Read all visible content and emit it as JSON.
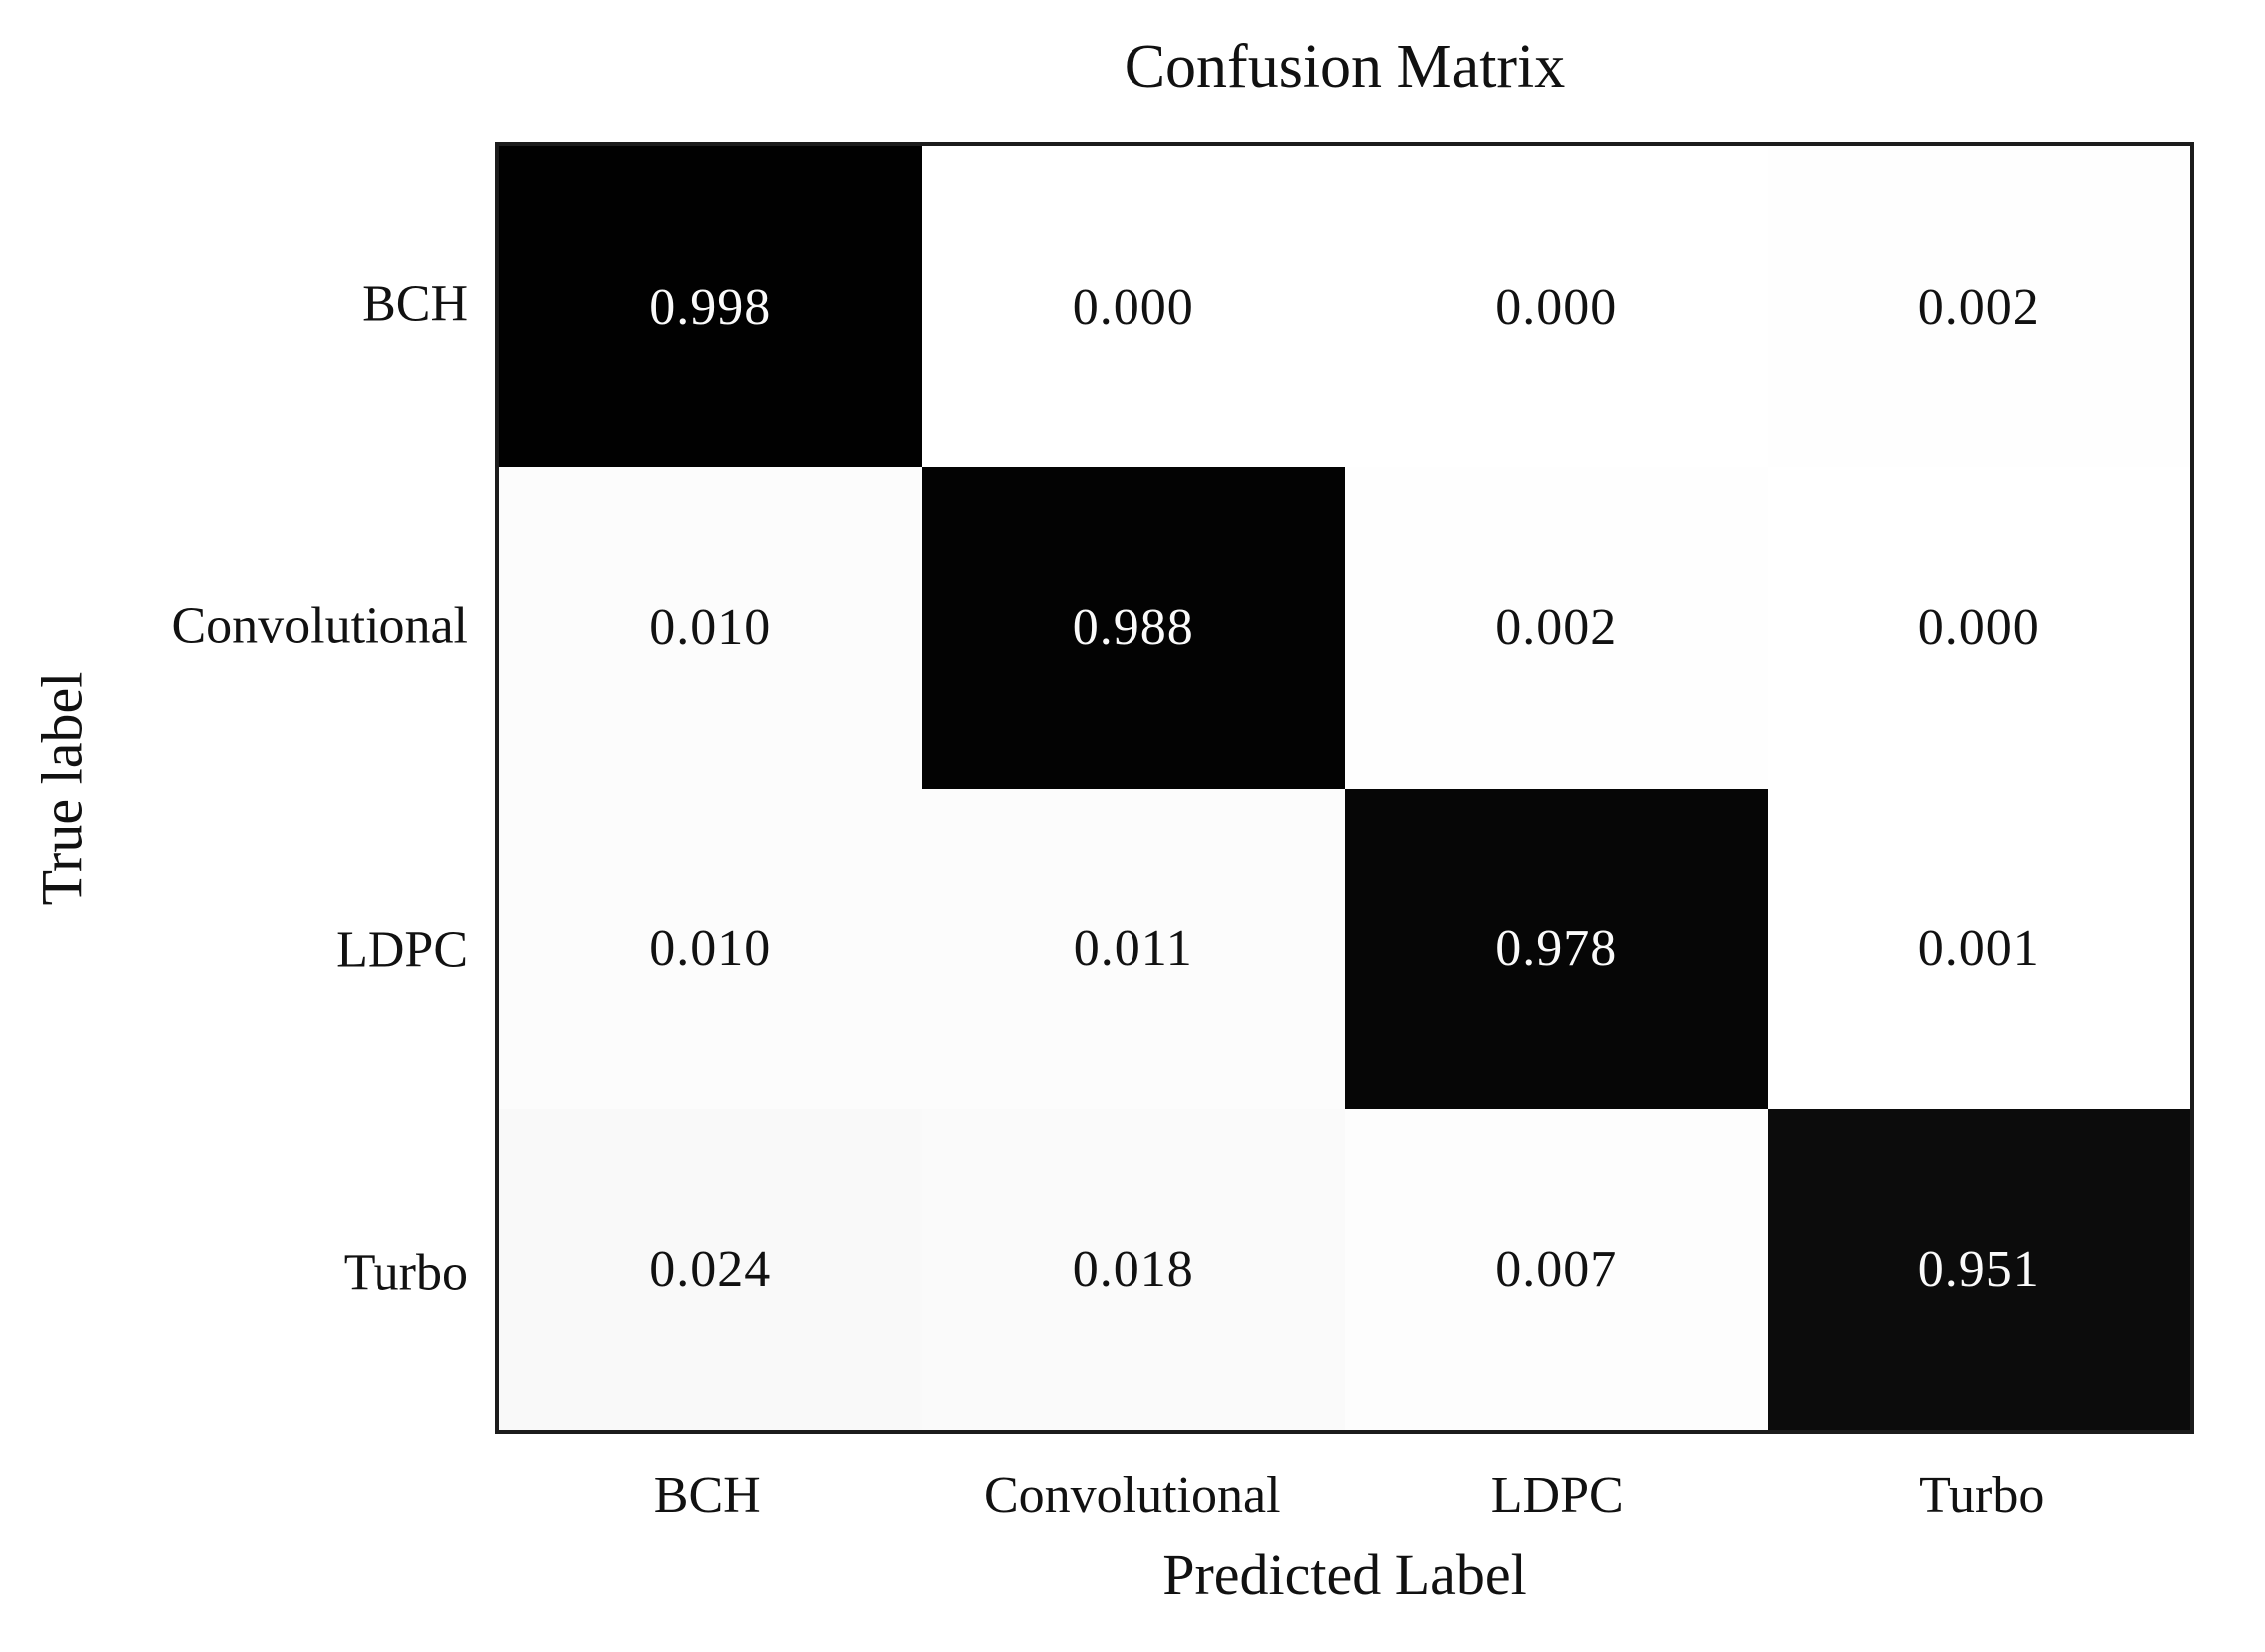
{
  "chart_data": {
    "type": "heatmap",
    "title": "Confusion Matrix",
    "xlabel": "Predicted Label",
    "ylabel": "True label",
    "x_tick_labels": [
      "BCH",
      "Convolutional",
      "LDPC",
      "Turbo"
    ],
    "y_tick_labels": [
      "BCH",
      "Convolutional",
      "LDPC",
      "Turbo"
    ],
    "series": [
      {
        "name": "BCH",
        "values": [
          0.998,
          0.0,
          0.0,
          0.002
        ]
      },
      {
        "name": "Convolutional",
        "values": [
          0.01,
          0.988,
          0.002,
          0.0
        ]
      },
      {
        "name": "LDPC",
        "values": [
          0.01,
          0.011,
          0.978,
          0.001
        ]
      },
      {
        "name": "Turbo",
        "values": [
          0.024,
          0.018,
          0.007,
          0.951
        ]
      }
    ],
    "value_decimals": 3,
    "value_range": [
      0,
      1
    ],
    "colormap": "greys (0 = white, 1 = black)",
    "legend": "none",
    "grid": false
  },
  "colors": {
    "background": "#ffffff",
    "text": "#111111",
    "spine": "#1c1c1c",
    "cell_min": "#ffffff",
    "cell_max": "#000000",
    "cell_text_on_dark": "#fafafa",
    "cell_text_on_light": "#111111"
  }
}
